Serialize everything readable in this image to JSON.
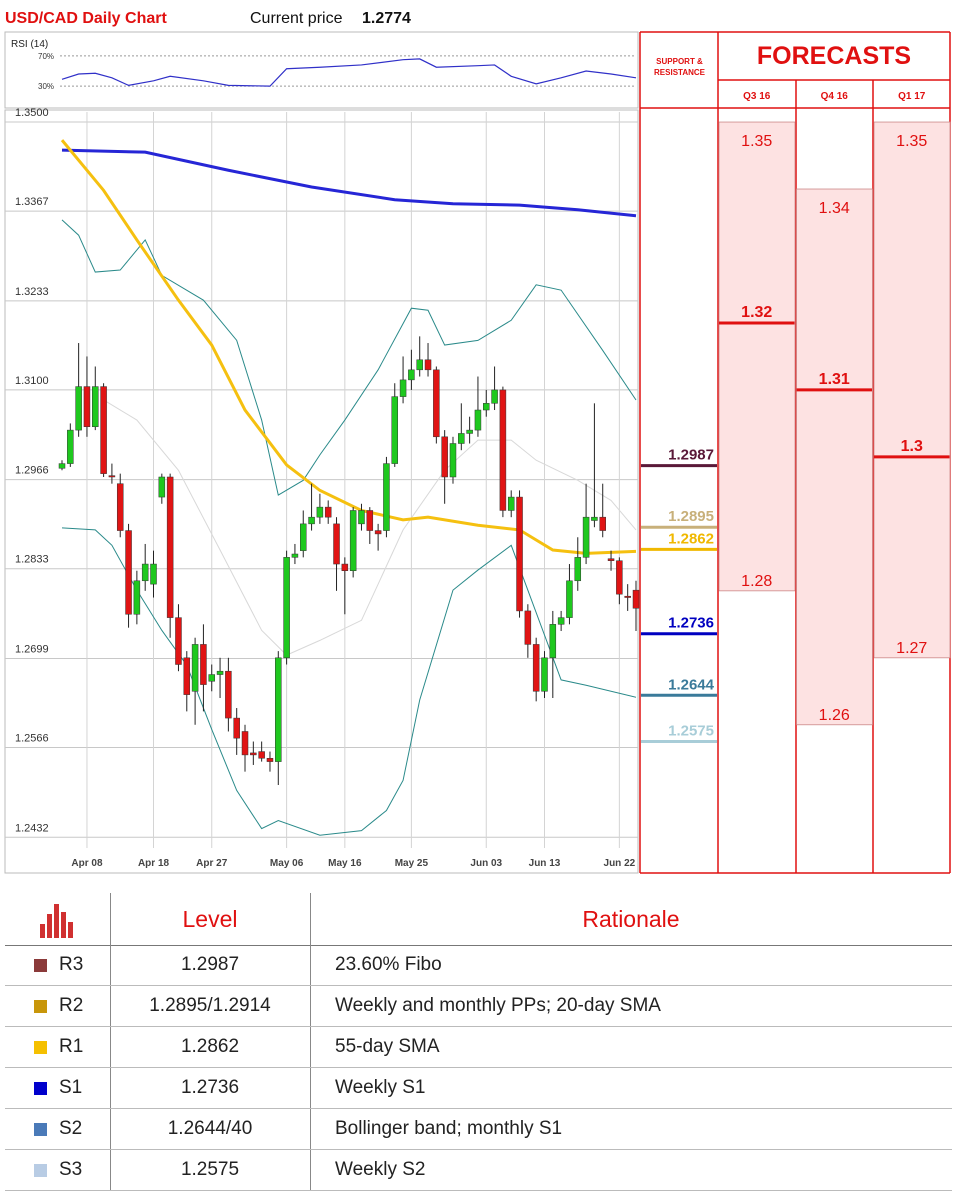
{
  "header": {
    "title": "USD/CAD Daily Chart",
    "price_label": "Current price",
    "price": "1.2774"
  },
  "chart_data": {
    "type": "candlestick",
    "categories": [
      null,
      null,
      null,
      "Apr 08",
      null,
      null,
      null,
      null,
      null,
      null,
      null,
      "Apr 18",
      null,
      null,
      null,
      null,
      null,
      null,
      "Apr 27",
      null,
      null,
      null,
      null,
      null,
      null,
      null,
      null,
      "May 06",
      null,
      null,
      null,
      null,
      null,
      null,
      "May 16",
      null,
      null,
      null,
      null,
      null,
      null,
      null,
      "May 25",
      null,
      null,
      null,
      null,
      null,
      null,
      null,
      null,
      "Jun 03",
      null,
      null,
      null,
      null,
      null,
      null,
      "Jun 13",
      null,
      null,
      null,
      null,
      null,
      null,
      null,
      null,
      "Jun 22",
      null,
      null
    ],
    "open": [
      1.2983,
      1.299,
      1.304,
      1.3105,
      1.3045,
      1.3105,
      1.2972,
      1.296,
      1.289,
      1.2765,
      1.2815,
      1.281,
      1.294,
      1.297,
      1.276,
      1.27,
      1.265,
      1.272,
      1.2665,
      1.2675,
      1.268,
      1.261,
      1.259,
      1.2558,
      1.256,
      1.255,
      1.2545,
      1.27,
      1.285,
      1.286,
      1.29,
      1.291,
      1.2925,
      1.29,
      1.284,
      1.283,
      1.29,
      1.292,
      1.289,
      1.289,
      1.299,
      1.309,
      1.3115,
      1.313,
      1.3145,
      1.313,
      1.303,
      1.297,
      1.302,
      1.3035,
      1.304,
      1.307,
      1.308,
      1.31,
      1.292,
      1.294,
      1.277,
      1.272,
      1.265,
      1.27,
      1.275,
      1.276,
      1.2815,
      1.285,
      1.2905,
      1.291,
      1.2848,
      1.2845,
      1.2792,
      1.2801
    ],
    "high": [
      1.2995,
      1.305,
      1.317,
      1.315,
      1.3135,
      1.311,
      1.299,
      1.2975,
      1.29,
      1.283,
      1.287,
      1.286,
      1.2975,
      1.2975,
      1.278,
      1.271,
      1.273,
      1.275,
      1.269,
      1.27,
      1.27,
      1.2625,
      1.26,
      1.2575,
      1.2575,
      1.256,
      1.271,
      1.286,
      1.287,
      1.292,
      1.296,
      1.2945,
      1.2935,
      1.291,
      1.285,
      1.2925,
      1.293,
      1.2925,
      1.29,
      1.3,
      1.311,
      1.315,
      1.316,
      1.318,
      1.317,
      1.3135,
      1.304,
      1.303,
      1.308,
      1.306,
      1.312,
      1.31,
      1.3135,
      1.3105,
      1.295,
      1.295,
      1.278,
      1.273,
      1.271,
      1.277,
      1.277,
      1.284,
      1.288,
      1.296,
      1.308,
      1.296,
      1.286,
      1.285,
      1.281,
      1.2815
    ],
    "low": [
      1.298,
      1.2985,
      1.303,
      1.303,
      1.304,
      1.297,
      1.296,
      1.288,
      1.2745,
      1.275,
      1.28,
      1.279,
      1.293,
      1.273,
      1.268,
      1.262,
      1.26,
      1.262,
      1.265,
      1.264,
      1.259,
      1.2555,
      1.253,
      1.254,
      1.2545,
      1.253,
      1.251,
      1.269,
      1.284,
      1.285,
      1.289,
      1.29,
      1.29,
      1.28,
      1.2765,
      1.282,
      1.289,
      1.287,
      1.286,
      1.288,
      1.2985,
      1.308,
      1.31,
      1.312,
      1.312,
      1.302,
      1.293,
      1.296,
      1.301,
      1.302,
      1.303,
      1.306,
      1.307,
      1.291,
      1.291,
      1.276,
      1.27,
      1.2635,
      1.264,
      1.264,
      1.274,
      1.275,
      1.28,
      1.284,
      1.2895,
      1.288,
      1.283,
      1.278,
      1.277,
      1.274
    ],
    "close": [
      1.299,
      1.304,
      1.3105,
      1.3045,
      1.3105,
      1.2975,
      1.297,
      1.289,
      1.2765,
      1.2815,
      1.284,
      1.284,
      1.297,
      1.276,
      1.269,
      1.2645,
      1.272,
      1.266,
      1.2675,
      1.268,
      1.261,
      1.258,
      1.2555,
      1.2555,
      1.255,
      1.2545,
      1.27,
      1.285,
      1.2855,
      1.29,
      1.291,
      1.2925,
      1.291,
      1.284,
      1.283,
      1.292,
      1.292,
      1.289,
      1.2885,
      1.299,
      1.309,
      1.3115,
      1.313,
      1.3145,
      1.313,
      1.303,
      1.297,
      1.302,
      1.3035,
      1.304,
      1.307,
      1.308,
      1.31,
      1.292,
      1.294,
      1.277,
      1.272,
      1.265,
      1.27,
      1.275,
      1.276,
      1.2815,
      1.285,
      1.291,
      1.291,
      1.289,
      1.2845,
      1.2795,
      1.279,
      1.2774
    ],
    "up_color": "#1ec81e",
    "down_color": "#e01414",
    "ylim": [
      1.2416,
      1.3515
    ],
    "yticks": [
      {
        "value": 1.35,
        "label": "1.3500"
      },
      1.3367,
      1.3233,
      {
        "value": 1.31,
        "label": "1.3100"
      },
      1.2966,
      1.2833,
      1.2699,
      1.2566,
      1.2432
    ],
    "grid": true,
    "lines": [
      {
        "color": "#d8d8d8",
        "width": 1,
        "x": [
          5,
          9,
          14,
          19,
          24,
          27,
          31,
          36,
          41,
          46,
          50,
          54,
          57,
          62,
          66,
          69
        ],
        "values": [
          1.3085,
          1.3055,
          1.298,
          1.2861,
          1.2741,
          1.2704,
          1.2726,
          1.2756,
          1.2891,
          1.298,
          1.3025,
          1.3025,
          1.2995,
          1.2965,
          1.2935,
          1.2891
        ]
      },
      {
        "color": "#2a8a8a",
        "width": 1,
        "x": [
          0,
          2,
          4,
          7,
          10,
          12,
          17,
          21,
          24,
          26,
          29,
          31,
          34,
          38,
          42,
          44,
          46,
          50,
          54,
          57,
          60,
          65,
          69
        ],
        "values": [
          1.3354,
          1.3331,
          1.3276,
          1.3279,
          1.3324,
          1.3271,
          1.3234,
          1.3174,
          1.3055,
          1.2943,
          1.2965,
          1.3003,
          1.3055,
          1.313,
          1.3222,
          1.3219,
          1.3167,
          1.3174,
          1.3204,
          1.3257,
          1.3249,
          1.3159,
          1.3085
        ]
      },
      {
        "color": "#2a8a8a",
        "width": 1,
        "x": [
          0,
          4,
          6,
          9,
          12,
          15,
          18,
          21,
          24,
          26,
          31,
          36,
          39,
          41,
          43,
          47,
          50,
          54,
          56,
          60,
          63,
          69
        ],
        "values": [
          1.2894,
          1.2891,
          1.2868,
          1.2801,
          1.2741,
          1.2689,
          1.2593,
          1.2502,
          1.2445,
          1.2457,
          1.2435,
          1.2442,
          1.2472,
          1.2517,
          1.2637,
          1.2801,
          1.2831,
          1.2868,
          1.2801,
          1.2667,
          1.2659,
          1.2641
        ]
      },
      {
        "color": "#2626d6",
        "width": 3,
        "x": [
          0,
          10,
          20,
          30,
          40,
          47,
          55,
          62,
          69
        ],
        "values": [
          1.3458,
          1.3455,
          1.3428,
          1.3403,
          1.3384,
          1.3378,
          1.3376,
          1.3369,
          1.336
        ]
      },
      {
        "color": "#f5c010",
        "width": 3,
        "x": [
          0,
          5,
          9,
          14,
          18,
          22,
          27,
          31,
          36,
          41,
          44,
          50,
          55,
          59,
          63,
          69
        ],
        "values": [
          1.3473,
          1.3398,
          1.3324,
          1.3234,
          1.3167,
          1.307,
          1.2988,
          1.295,
          1.292,
          1.2906,
          1.291,
          1.2898,
          1.2891,
          1.2861,
          1.2856,
          1.2859
        ]
      }
    ],
    "levels": [
      {
        "value": 1.2987,
        "color": "#5a1838"
      },
      {
        "value": 1.2895,
        "color": "#c8b07a"
      },
      {
        "value": 1.2862,
        "color": "#f0b800"
      },
      {
        "value": 1.2736,
        "color": "#0000c0"
      },
      {
        "value": 1.2644,
        "color": "#3a7a9a"
      },
      {
        "value": 1.2575,
        "color": "#a8cdd8"
      }
    ],
    "rsi": {
      "title": "RSI (14)",
      "color": "#3030c8",
      "ylim": [
        5,
        95
      ],
      "yticks": [
        {
          "value": 70,
          "label": "70%"
        },
        {
          "value": 30,
          "label": "30%"
        }
      ],
      "x": [
        0,
        2,
        4,
        6,
        8,
        11,
        13,
        17,
        20,
        25,
        27,
        31,
        36,
        41,
        43,
        45,
        50,
        52,
        54,
        57,
        60,
        63,
        66,
        69
      ],
      "values": [
        39,
        46,
        47,
        41,
        31,
        37,
        43,
        37,
        31,
        30,
        53,
        55,
        58,
        65,
        66,
        55,
        57,
        58,
        43,
        33,
        41,
        50,
        46,
        41
      ]
    }
  },
  "sr_header": "SUPPORT & RESISTANCE",
  "forecasts": {
    "title": "FORECASTS",
    "columns": [
      {
        "name": "Q3 16",
        "high": 1.35,
        "mid": 1.32,
        "low": 1.28
      },
      {
        "name": "Q4 16",
        "high": 1.34,
        "mid": 1.31,
        "low": 1.26
      },
      {
        "name": "Q1 17",
        "high": 1.35,
        "mid": 1.3,
        "low": 1.27
      }
    ]
  },
  "table": {
    "headers": [
      "Level",
      "Rationale"
    ],
    "swatch_colors": [
      "#8b3a3a",
      "#c8960a",
      "#f5c000",
      "#0000cc",
      "#4a7ab8",
      "#b8cce4"
    ],
    "rows": [
      [
        "R3",
        "1.2987",
        "23.60% Fibo"
      ],
      [
        "R2",
        "1.2895/1.2914",
        "Weekly and monthly PPs; 20-day SMA"
      ],
      [
        "R1",
        "1.2862",
        "55-day SMA"
      ],
      [
        "S1",
        "1.2736",
        "Weekly S1"
      ],
      [
        "S2",
        "1.2644/40",
        "Bollinger band; monthly S1"
      ],
      [
        "S3",
        "1.2575",
        "Weekly S2"
      ]
    ]
  }
}
